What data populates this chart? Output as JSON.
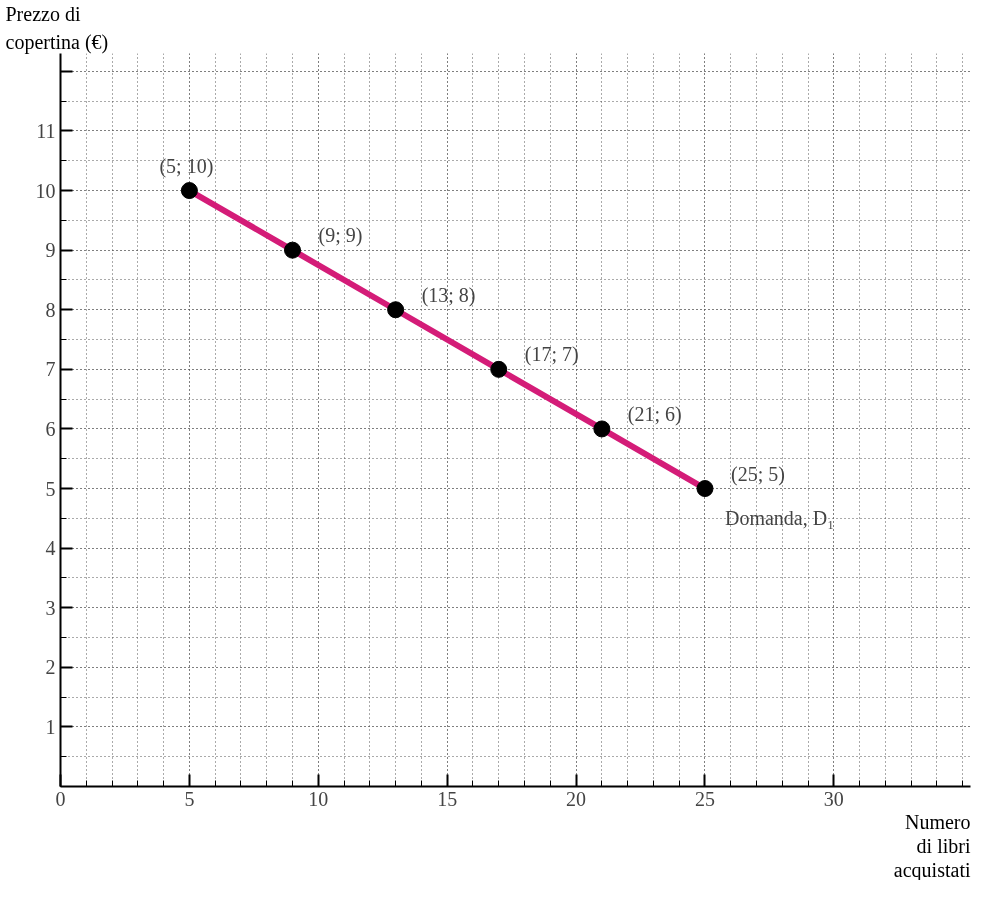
{
  "chart_data": {
    "type": "line",
    "xlabel": "Numero\ndi libri\nacquistati",
    "ylabel": "Prezzo di\ncopertina (€)",
    "x": [
      5,
      9,
      13,
      17,
      21,
      25
    ],
    "series": [
      {
        "color": "#d41c78",
        "values": [
          10,
          9,
          8,
          7,
          6,
          5
        ]
      }
    ],
    "xlim": [
      0,
      35.3
    ],
    "ylim": [
      0,
      12.3
    ],
    "xticks": [
      0,
      5,
      10,
      15,
      20,
      25,
      30
    ],
    "yticks": [
      1,
      2,
      3,
      4,
      5,
      6,
      7,
      8,
      9,
      10,
      11,
      {
        "value": 12,
        "label": null
      }
    ],
    "grid": true,
    "marker": "circle",
    "line_style": "solid",
    "annotations": [
      {
        "text": "(5; 10)",
        "x": 5,
        "y": 10
      },
      {
        "text": "(9; 9)",
        "x": 9,
        "y": 9
      },
      {
        "text": "(13; 8)",
        "x": 13,
        "y": 8
      },
      {
        "text": "(17; 7)",
        "x": 17,
        "y": 7
      },
      {
        "text": "(21; 6)",
        "x": 21,
        "y": 6
      },
      {
        "text": "(25; 5)",
        "x": 25,
        "y": 5
      },
      {
        "text": "Domanda, D₁",
        "x": 25,
        "y": 5
      }
    ]
  }
}
